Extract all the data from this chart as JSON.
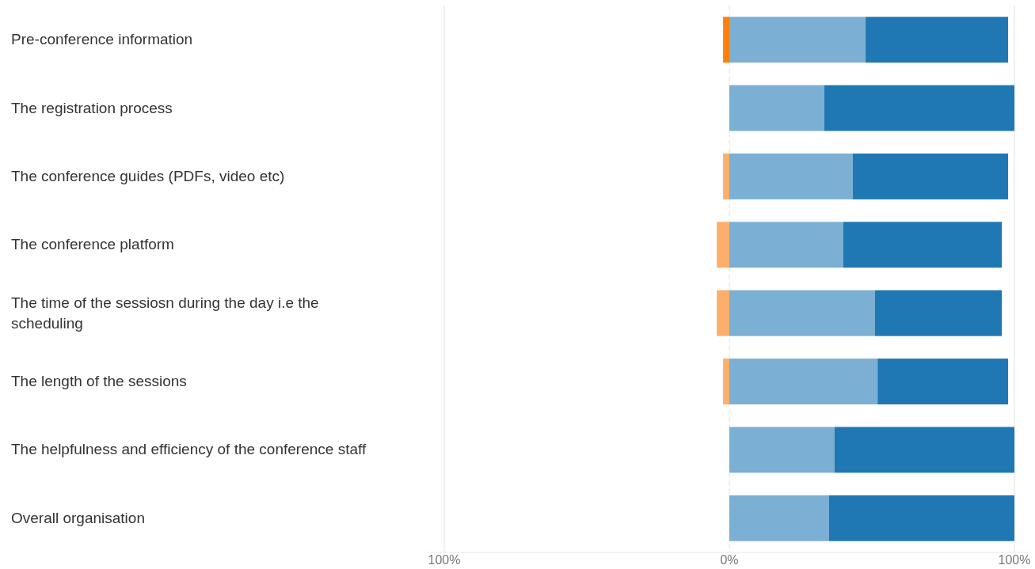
{
  "chart_data": {
    "type": "bar",
    "orientation": "horizontal",
    "stacked": true,
    "categories": [
      "Pre-conference information",
      "The registration process",
      "The conference guides (PDFs, video etc)",
      "The conference platform",
      "The time of the sessiosn during the day i.e the scheduling",
      "The length of the sessions",
      "The helpfulness and efficiency of the conference staff",
      "Overall organisation"
    ],
    "series": [
      {
        "color": "#fdae6b",
        "values": [
          0,
          0,
          -2.2,
          -4.4,
          -4.4,
          -2.2,
          0,
          0
        ]
      },
      {
        "color": "#ff7f0e",
        "values": [
          -2.2,
          0,
          0,
          0,
          0,
          0,
          0,
          0
        ]
      },
      {
        "color": "#7bafd4",
        "values": [
          47.8,
          33.3,
          43.3,
          40,
          51.1,
          52,
          36.9,
          35
        ]
      },
      {
        "color": "#1f77b4",
        "values": [
          50,
          66.7,
          54.5,
          55.6,
          44.5,
          45.8,
          63.1,
          65
        ]
      }
    ],
    "xlim": [
      -100,
      100
    ],
    "xticks": [
      {
        "value": -100,
        "label": "100%"
      },
      {
        "value": 0,
        "label": "0%"
      },
      {
        "value": 100,
        "label": "100%"
      }
    ],
    "grid": "x"
  }
}
